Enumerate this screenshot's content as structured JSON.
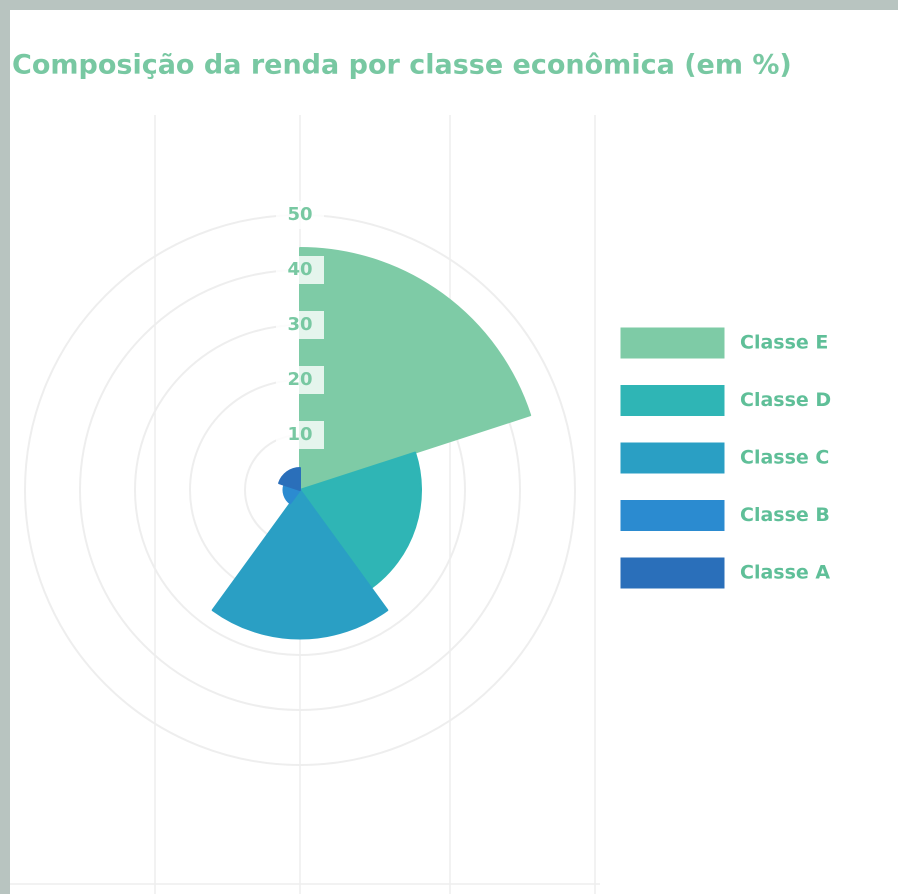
{
  "chart_data": {
    "type": "polarArea",
    "title": "Composição da renda por classe econômica (em %)",
    "categories": [
      "Classe E",
      "Classe D",
      "Classe C",
      "Classe B",
      "Classe A"
    ],
    "values": [
      44,
      22,
      27,
      3,
      4
    ],
    "colors": [
      "#7ecba6",
      "#2fb5b5",
      "#2a9fc4",
      "#2b8bd0",
      "#2a6fba"
    ],
    "rlim": [
      0,
      50
    ],
    "rticks": [
      10,
      20,
      30,
      40,
      50
    ],
    "legend": "right"
  }
}
